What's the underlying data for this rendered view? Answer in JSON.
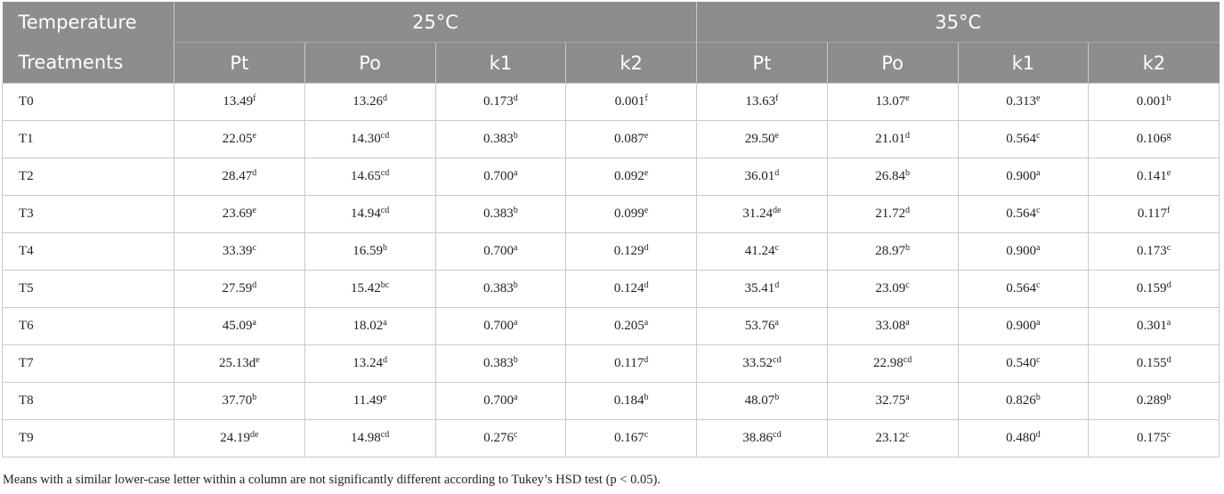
{
  "table": {
    "header": {
      "row1": [
        "Temperature",
        "25°C",
        "35°C"
      ],
      "row2": [
        "Treatments",
        "Pt",
        "Po",
        "k1",
        "k2",
        "Pt",
        "Po",
        "k1",
        "k2"
      ]
    },
    "rows": [
      {
        "label": "T0",
        "cells": [
          [
            "13.49",
            "f"
          ],
          [
            "13.26",
            "d"
          ],
          [
            "0.173",
            "d"
          ],
          [
            "0.001",
            "f"
          ],
          [
            "13.63",
            "f"
          ],
          [
            "13.07",
            "e"
          ],
          [
            "0.313",
            "e"
          ],
          [
            "0.001",
            "h"
          ]
        ]
      },
      {
        "label": "T1",
        "cells": [
          [
            "22.05",
            "e"
          ],
          [
            "14.30",
            "cd"
          ],
          [
            "0.383",
            "b"
          ],
          [
            "0.087",
            "e"
          ],
          [
            "29.50",
            "e"
          ],
          [
            "21.01",
            "d"
          ],
          [
            "0.564",
            "c"
          ],
          [
            "0.106",
            "g"
          ]
        ]
      },
      {
        "label": "T2",
        "cells": [
          [
            "28.47",
            "d"
          ],
          [
            "14.65",
            "cd"
          ],
          [
            "0.700",
            "a"
          ],
          [
            "0.092",
            "e"
          ],
          [
            "36.01",
            "d"
          ],
          [
            "26.84",
            "b"
          ],
          [
            "0.900",
            "a"
          ],
          [
            "0.141",
            "e"
          ]
        ]
      },
      {
        "label": "T3",
        "cells": [
          [
            "23.69",
            "e"
          ],
          [
            "14.94",
            "cd"
          ],
          [
            "0.383",
            "b"
          ],
          [
            "0.099",
            "e"
          ],
          [
            "31.24",
            "de"
          ],
          [
            "21.72",
            "d"
          ],
          [
            "0.564",
            "c"
          ],
          [
            "0.117",
            "f"
          ]
        ]
      },
      {
        "label": "T4",
        "cells": [
          [
            "33.39",
            "c"
          ],
          [
            "16.59",
            "b"
          ],
          [
            "0.700",
            "a"
          ],
          [
            "0.129",
            "d"
          ],
          [
            "41.24",
            "c"
          ],
          [
            "28.97",
            "b"
          ],
          [
            "0.900",
            "a"
          ],
          [
            "0.173",
            "c"
          ]
        ]
      },
      {
        "label": "T5",
        "cells": [
          [
            "27.59",
            "d"
          ],
          [
            "15.42",
            "bc"
          ],
          [
            "0.383",
            "b"
          ],
          [
            "0.124",
            "d"
          ],
          [
            "35.41",
            "d"
          ],
          [
            "23.09",
            "c"
          ],
          [
            "0.564",
            "c"
          ],
          [
            "0.159",
            "d"
          ]
        ]
      },
      {
        "label": "T6",
        "cells": [
          [
            "45.09",
            "a"
          ],
          [
            "18.02",
            "a"
          ],
          [
            "0.700",
            "a"
          ],
          [
            "0.205",
            "a"
          ],
          [
            "53.76",
            "a"
          ],
          [
            "33.08",
            "a"
          ],
          [
            "0.900",
            "a"
          ],
          [
            "0.301",
            "a"
          ]
        ]
      },
      {
        "label": "T7",
        "cells": [
          [
            "25.13d",
            "e"
          ],
          [
            "13.24",
            "d"
          ],
          [
            "0.383",
            "b"
          ],
          [
            "0.117",
            "d"
          ],
          [
            "33.52",
            "cd"
          ],
          [
            "22.98",
            "cd"
          ],
          [
            "0.540",
            "c"
          ],
          [
            "0.155",
            "d"
          ]
        ]
      },
      {
        "label": "T8",
        "cells": [
          [
            "37.70",
            "b"
          ],
          [
            "11.49",
            "e"
          ],
          [
            "0.700",
            "a"
          ],
          [
            "0.184",
            "b"
          ],
          [
            "48.07",
            "b"
          ],
          [
            "32.75",
            "a"
          ],
          [
            "0.826",
            "b"
          ],
          [
            "0.289",
            "b"
          ]
        ]
      },
      {
        "label": "T9",
        "cells": [
          [
            "24.19",
            "de"
          ],
          [
            "14.98",
            "cd"
          ],
          [
            "0.276",
            "c"
          ],
          [
            "0.167",
            "c"
          ],
          [
            "38.86",
            "cd"
          ],
          [
            "23.12",
            "c"
          ],
          [
            "0.480",
            "d"
          ],
          [
            "0.175",
            "c"
          ]
        ]
      }
    ],
    "footnote": "Means with a similar lower-case letter within a column are not significantly different according to Tukey’s HSD test (p < 0.05)."
  }
}
